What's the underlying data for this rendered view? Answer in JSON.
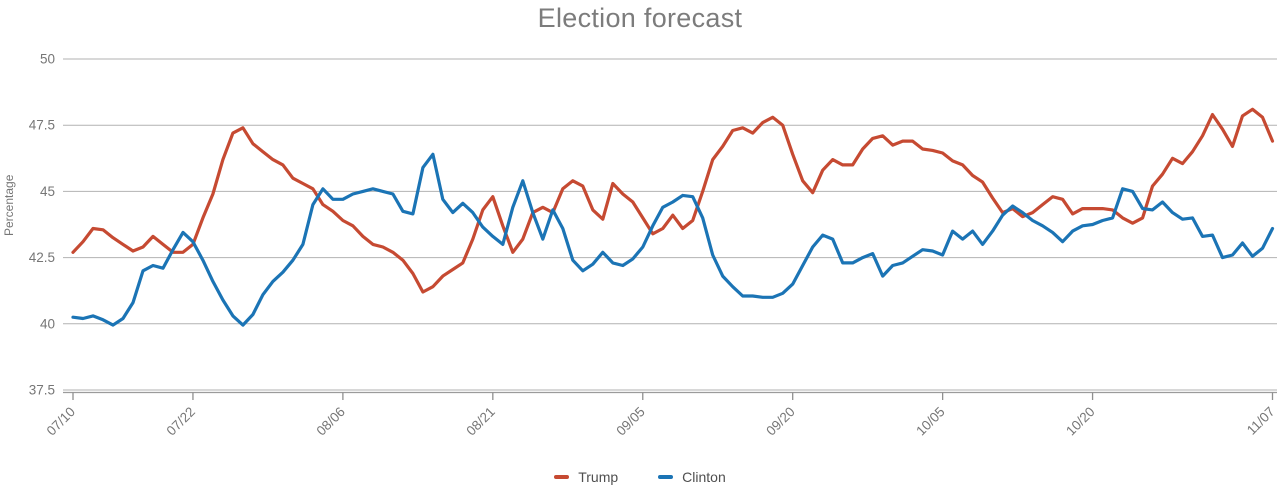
{
  "page_title": "Election forecast",
  "chart_data": {
    "type": "line",
    "title": "Election forecast",
    "xlabel": "",
    "ylabel": "Percentage",
    "ylim": [
      37.5,
      50
    ],
    "y_ticks": [
      50,
      47.5,
      45,
      42.5,
      40,
      37.5
    ],
    "grid": true,
    "legend_position": "bottom",
    "x_unit": "days since 07/10",
    "x_total_days": 120,
    "x_ticks": [
      {
        "day": 0,
        "label": "07/10"
      },
      {
        "day": 12,
        "label": "07/22"
      },
      {
        "day": 27,
        "label": "08/06"
      },
      {
        "day": 42,
        "label": "08/21"
      },
      {
        "day": 57,
        "label": "09/05"
      },
      {
        "day": 72,
        "label": "09/20"
      },
      {
        "day": 87,
        "label": "10/05"
      },
      {
        "day": 102,
        "label": "10/20"
      },
      {
        "day": 120,
        "label": "11/07"
      }
    ],
    "series": [
      {
        "name": "Trump",
        "color": "#c64a32",
        "values": [
          42.7,
          43.1,
          43.6,
          43.55,
          43.25,
          43.0,
          42.75,
          42.9,
          43.3,
          43.0,
          42.7,
          42.7,
          43.0,
          44.0,
          44.9,
          46.2,
          47.2,
          47.4,
          46.8,
          46.5,
          46.2,
          46.0,
          45.5,
          45.3,
          45.1,
          44.5,
          44.25,
          43.9,
          43.7,
          43.3,
          43.0,
          42.9,
          42.7,
          42.4,
          41.9,
          41.2,
          41.4,
          41.8,
          42.05,
          42.3,
          43.2,
          44.3,
          44.8,
          43.7,
          42.7,
          43.2,
          44.2,
          44.4,
          44.2,
          45.1,
          45.4,
          45.2,
          44.3,
          43.95,
          45.3,
          44.9,
          44.6,
          44.0,
          43.4,
          43.6,
          44.1,
          43.6,
          43.9,
          45.0,
          46.2,
          46.7,
          47.3,
          47.4,
          47.2,
          47.6,
          47.8,
          47.5,
          46.4,
          45.4,
          44.95,
          45.8,
          46.2,
          46.0,
          46.0,
          46.6,
          47.0,
          47.1,
          46.75,
          46.9,
          46.9,
          46.6,
          46.55,
          46.45,
          46.15,
          46.0,
          45.6,
          45.35,
          44.75,
          44.2,
          44.35,
          44.05,
          44.2,
          44.5,
          44.8,
          44.7,
          44.15,
          44.35,
          44.35,
          44.35,
          44.3,
          44.0,
          43.8,
          44.0,
          45.2,
          45.65,
          46.25,
          46.05,
          46.5,
          47.1,
          47.9,
          47.35,
          46.7,
          47.85,
          48.1,
          47.8,
          46.9
        ]
      },
      {
        "name": "Clinton",
        "color": "#1b74b5",
        "values": [
          40.25,
          40.2,
          40.3,
          40.15,
          39.95,
          40.2,
          40.8,
          42.0,
          42.2,
          42.1,
          42.8,
          43.45,
          43.1,
          42.4,
          41.6,
          40.9,
          40.3,
          39.95,
          40.35,
          41.1,
          41.6,
          41.95,
          42.4,
          43.0,
          44.5,
          45.1,
          44.7,
          44.7,
          44.9,
          45.0,
          45.1,
          45.0,
          44.9,
          44.25,
          44.15,
          45.9,
          46.4,
          44.7,
          44.2,
          44.55,
          44.2,
          43.65,
          43.3,
          43.0,
          44.4,
          45.4,
          44.2,
          43.2,
          44.3,
          43.6,
          42.4,
          42.0,
          42.25,
          42.7,
          42.3,
          42.2,
          42.45,
          42.9,
          43.7,
          44.4,
          44.6,
          44.85,
          44.8,
          44.0,
          42.6,
          41.8,
          41.4,
          41.05,
          41.05,
          41.0,
          41.0,
          41.15,
          41.5,
          42.2,
          42.9,
          43.35,
          43.2,
          42.3,
          42.3,
          42.5,
          42.65,
          41.8,
          42.2,
          42.3,
          42.55,
          42.8,
          42.75,
          42.6,
          43.5,
          43.2,
          43.5,
          43.0,
          43.5,
          44.1,
          44.45,
          44.2,
          43.9,
          43.7,
          43.45,
          43.1,
          43.5,
          43.7,
          43.75,
          43.9,
          44.0,
          45.1,
          45.0,
          44.35,
          44.3,
          44.6,
          44.2,
          43.95,
          44.0,
          43.3,
          43.35,
          42.5,
          42.6,
          43.05,
          42.55,
          42.85,
          43.6
        ]
      }
    ],
    "style": {
      "grid_color": "#b2b2b2",
      "axis_color": "#9b9b9b",
      "tick_color": "#8f8f8f",
      "label_color": "#767676",
      "line_width": 3.2
    }
  },
  "legend": {
    "items": [
      {
        "label": "Trump"
      },
      {
        "label": "Clinton"
      }
    ]
  }
}
